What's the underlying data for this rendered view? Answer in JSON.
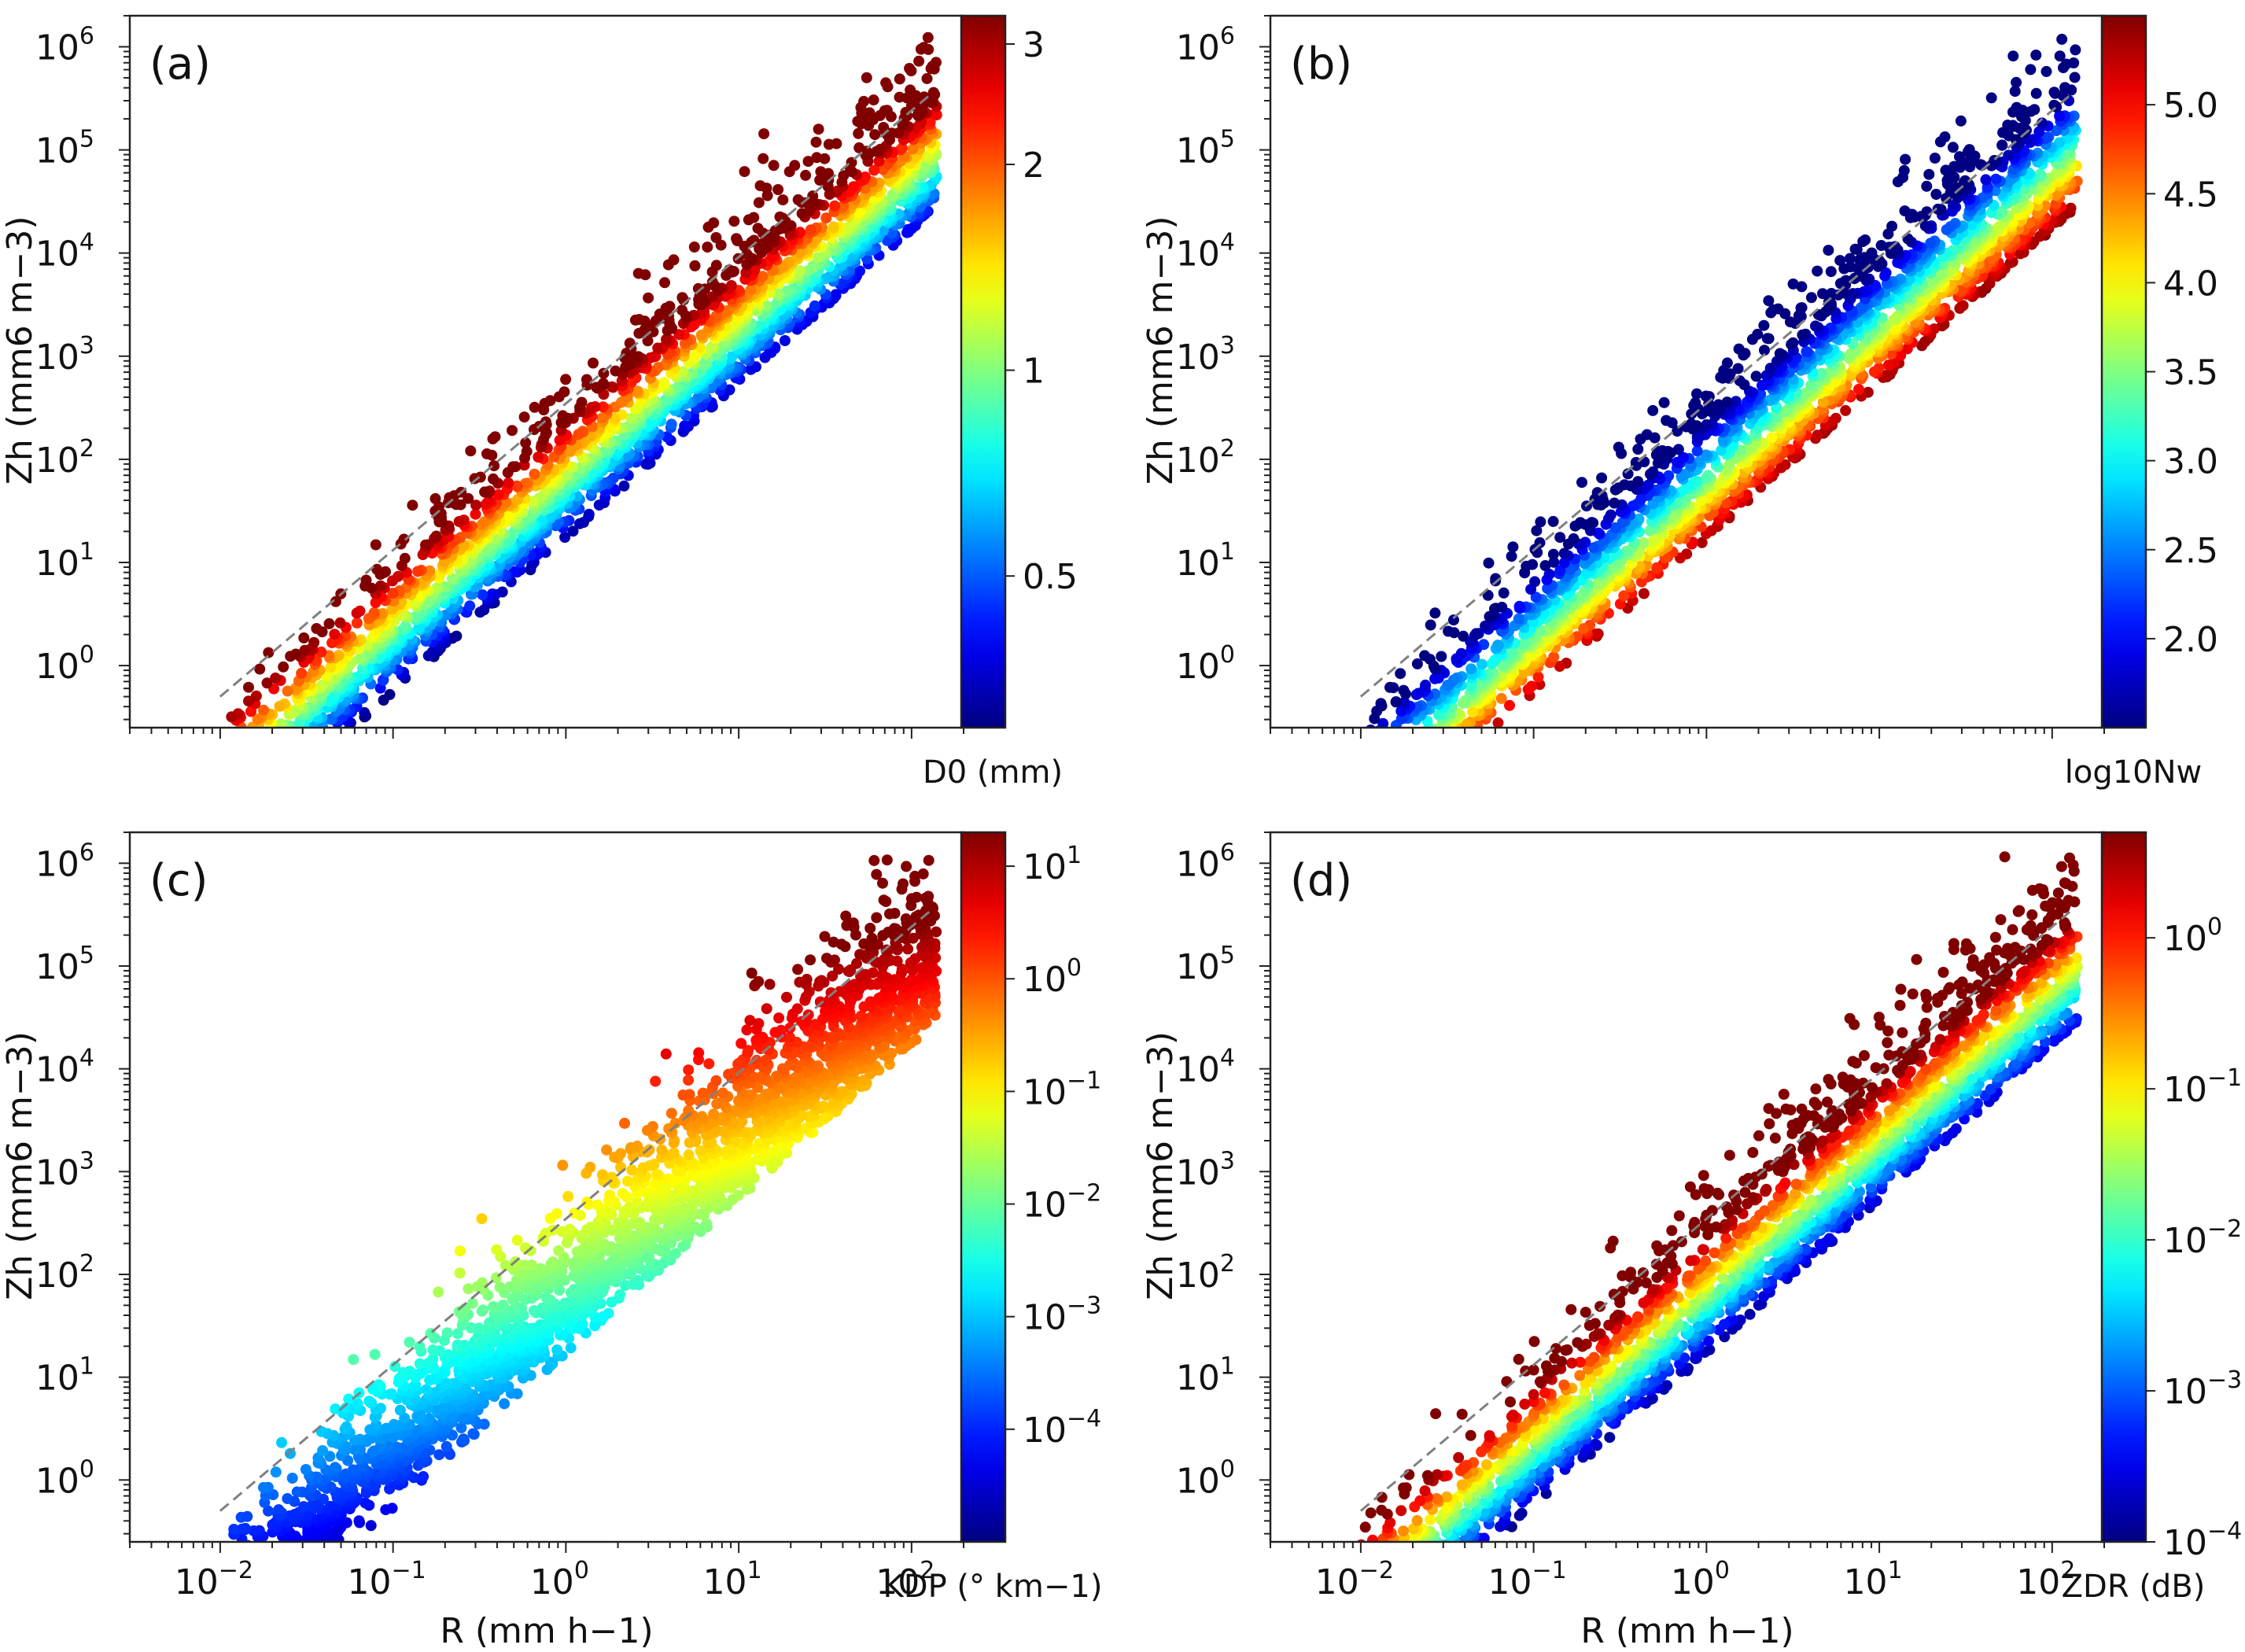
{
  "chart_data": [
    {
      "type": "scatter",
      "panel_label": "(a)",
      "xlabel": "",
      "ylabel": "Zh (mm6 m−3)",
      "xscale": "log",
      "yscale": "log",
      "xlim": [
        0.003,
        200
      ],
      "ylim": [
        0.25,
        2000000
      ],
      "xticks": [
        0.01,
        0.1,
        1,
        10,
        100
      ],
      "yticks": [
        1,
        10,
        100,
        1000,
        10000,
        100000,
        1000000
      ],
      "show_xtick_labels": false,
      "reference_line": {
        "style": "dashed",
        "color": "#808080",
        "x": [
          0.01,
          130
        ],
        "y": [
          0.5,
          350000
        ]
      },
      "colorbar": {
        "label": "D0 (mm)",
        "scale": "log",
        "range": [
          0.3,
          3.3
        ],
        "ticks": [
          0.5,
          1,
          2,
          3
        ],
        "tick_labels": [
          "0.5",
          "1",
          "2",
          "3"
        ],
        "color_param": "size"
      },
      "scatter_envelope": {
        "x_range": [
          0.01,
          140
        ],
        "y_center_at_1_mmh": 60,
        "slope": 1.5,
        "spread_decades": 1.1,
        "points": 2600
      }
    },
    {
      "type": "scatter",
      "panel_label": "(b)",
      "xlabel": "",
      "ylabel": "Zh (mm6 m−3)",
      "xscale": "log",
      "yscale": "log",
      "xlim": [
        0.003,
        200
      ],
      "ylim": [
        0.25,
        2000000
      ],
      "xticks": [
        0.01,
        0.1,
        1,
        10,
        100
      ],
      "yticks": [
        1,
        10,
        100,
        1000,
        10000,
        100000,
        1000000
      ],
      "show_xtick_labels": false,
      "reference_line": {
        "style": "dashed",
        "color": "#808080",
        "x": [
          0.01,
          130
        ],
        "y": [
          0.5,
          350000
        ]
      },
      "colorbar": {
        "label": "log10Nw",
        "scale": "linear",
        "range": [
          1.5,
          5.5
        ],
        "ticks": [
          2.0,
          2.5,
          3.0,
          3.5,
          4.0,
          4.5,
          5.0
        ],
        "tick_labels": [
          "2.0",
          "2.5",
          "3.0",
          "3.5",
          "4.0",
          "4.5",
          "5.0"
        ],
        "color_param": "concentration"
      },
      "scatter_envelope": {
        "x_range": [
          0.01,
          140
        ],
        "y_center_at_1_mmh": 60,
        "slope": 1.5,
        "spread_decades": 1.1,
        "points": 2600
      }
    },
    {
      "type": "scatter",
      "panel_label": "(c)",
      "xlabel": "R (mm h−1)",
      "ylabel": "Zh (mm6 m−3)",
      "xscale": "log",
      "yscale": "log",
      "xlim": [
        0.003,
        200
      ],
      "ylim": [
        0.25,
        2000000
      ],
      "xticks": [
        0.01,
        0.1,
        1,
        10,
        100
      ],
      "yticks": [
        1,
        10,
        100,
        1000,
        10000,
        100000,
        1000000
      ],
      "show_xtick_labels": true,
      "reference_line": {
        "style": "dashed",
        "color": "#808080",
        "x": [
          0.01,
          130
        ],
        "y": [
          0.5,
          350000
        ]
      },
      "colorbar": {
        "label": "KDP (° km−1)",
        "scale": "log",
        "range": [
          1e-05,
          20
        ],
        "ticks": [
          0.0001,
          0.001,
          0.01,
          0.1,
          1,
          10
        ],
        "tick_labels": [
          "10^-4",
          "10^-3",
          "10^-2",
          "10^-1",
          "10^0",
          "10^1"
        ],
        "color_param": "rain"
      },
      "scatter_envelope": {
        "x_range": [
          0.01,
          140
        ],
        "y_center_at_1_mmh": 60,
        "slope": 1.5,
        "spread_decades": 1.1,
        "points": 2600
      }
    },
    {
      "type": "scatter",
      "panel_label": "(d)",
      "xlabel": "R (mm h−1)",
      "ylabel": "Zh (mm6 m−3)",
      "xscale": "log",
      "yscale": "log",
      "xlim": [
        0.003,
        200
      ],
      "ylim": [
        0.25,
        2000000
      ],
      "xticks": [
        0.01,
        0.1,
        1,
        10,
        100
      ],
      "yticks": [
        1,
        10,
        100,
        1000,
        10000,
        100000,
        1000000
      ],
      "show_xtick_labels": true,
      "reference_line": {
        "style": "dashed",
        "color": "#808080",
        "x": [
          0.01,
          130
        ],
        "y": [
          0.5,
          350000
        ]
      },
      "colorbar": {
        "label": "ZDR (dB)",
        "scale": "log",
        "range": [
          0.0001,
          5
        ],
        "ticks": [
          0.0001,
          0.001,
          0.01,
          0.1,
          1
        ],
        "tick_labels": [
          "10^-4",
          "10^-3",
          "10^-2",
          "10^-1",
          "10^0"
        ],
        "color_param": "size"
      },
      "scatter_envelope": {
        "x_range": [
          0.01,
          140
        ],
        "y_center_at_1_mmh": 60,
        "slope": 1.5,
        "spread_decades": 1.1,
        "points": 2600
      }
    }
  ],
  "colormap": "jet"
}
